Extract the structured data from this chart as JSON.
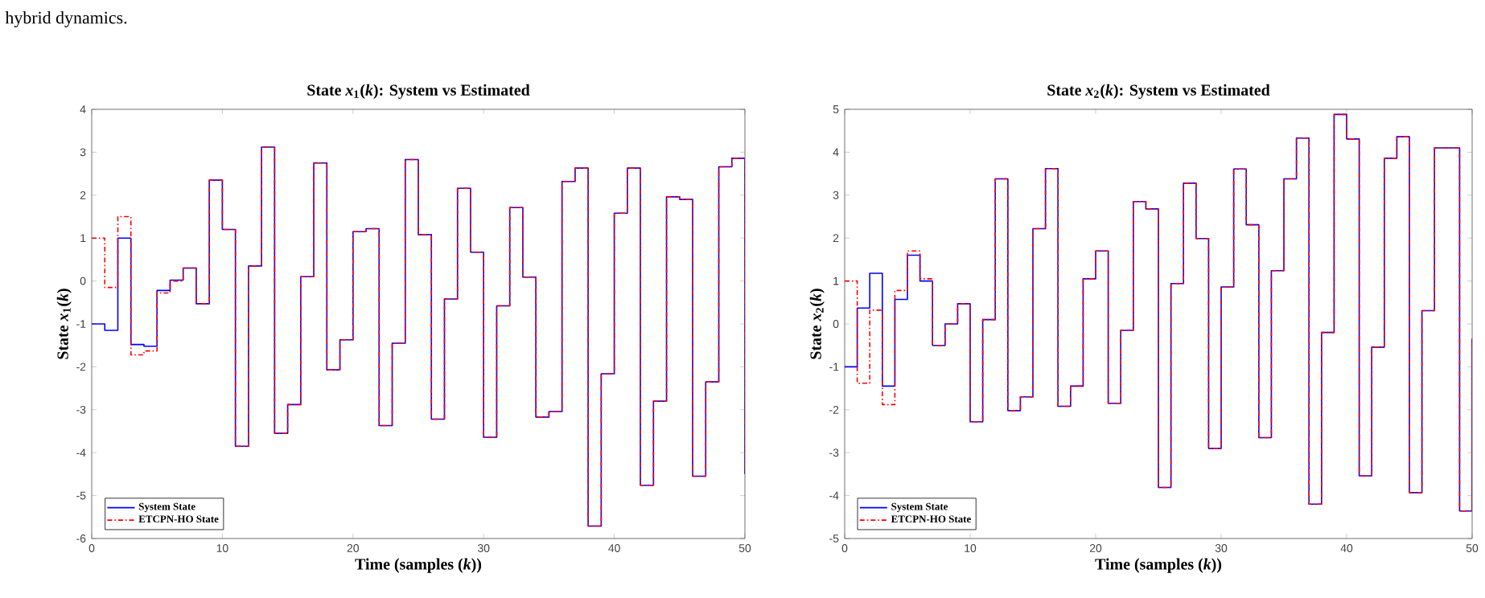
{
  "chart_data": [
    {
      "type": "step",
      "title": "State *x*$_{1}$(*k*): System vs Estimated",
      "xlabel": "Time (samples (*k*))",
      "ylabel": "State *x*$_{1}$(*k*)",
      "annotations": [
        "hybrid dynamics."
      ],
      "x": [
        0,
        1,
        2,
        3,
        4,
        5,
        6,
        7,
        8,
        9,
        10,
        11,
        12,
        13,
        14,
        15,
        16,
        17,
        18,
        19,
        20,
        21,
        22,
        23,
        24,
        25,
        26,
        27,
        28,
        29,
        30,
        31,
        32,
        33,
        34,
        35,
        36,
        37,
        38,
        39,
        40,
        41,
        42,
        43,
        44,
        45,
        46,
        47,
        48,
        49,
        50
      ],
      "series": [
        {
          "name": "System State",
          "color": "#0000ff",
          "line_style": "solid",
          "values": [
            -1,
            -1.15,
            1.0,
            -1.48,
            -1.52,
            -0.22,
            0.02,
            0.3,
            -0.53,
            2.35,
            1.2,
            -3.85,
            0.35,
            3.12,
            -3.55,
            -2.88,
            0.1,
            2.75,
            -2.07,
            -1.37,
            1.15,
            1.22,
            -3.37,
            -1.45,
            2.83,
            1.08,
            -3.22,
            -0.42,
            2.16,
            0.67,
            -3.64,
            -0.58,
            1.71,
            0.09,
            -3.17,
            -3.04,
            2.32,
            2.63,
            -5.71,
            -2.16,
            1.58,
            2.63,
            -4.76,
            -2.8,
            1.96,
            1.9,
            -4.55,
            -2.35,
            2.66,
            2.86,
            -4.5
          ]
        },
        {
          "name": "ETCPN-HO State",
          "color": "#ff0000",
          "line_style": "dashed",
          "values": [
            1.0,
            -0.15,
            1.5,
            -1.72,
            -1.63,
            -0.28,
            0.0,
            0.3,
            -0.53,
            2.35,
            1.2,
            -3.85,
            0.35,
            3.12,
            -3.55,
            -2.88,
            0.1,
            2.75,
            -2.07,
            -1.37,
            1.15,
            1.22,
            -3.37,
            -1.45,
            2.83,
            1.08,
            -3.22,
            -0.42,
            2.16,
            0.67,
            -3.64,
            -0.58,
            1.71,
            0.09,
            -3.17,
            -3.04,
            2.32,
            2.63,
            -5.71,
            -2.16,
            1.58,
            2.63,
            -4.76,
            -2.8,
            1.96,
            1.9,
            -4.55,
            -2.35,
            2.66,
            2.86,
            -4.5
          ]
        }
      ],
      "xlim": [
        0,
        50
      ],
      "xticks": [
        0,
        10,
        20,
        30,
        40,
        50
      ],
      "ylim": [
        -6,
        4
      ],
      "yticks": [
        -6,
        -5,
        -4,
        -3,
        -2,
        -1,
        0,
        1,
        2,
        3,
        4
      ],
      "legend": "bottom left",
      "grid": false
    },
    {
      "type": "step",
      "title": "State *x*$_{2}$(*k*): System vs Estimated",
      "xlabel": "Time (samples (*k*))",
      "ylabel": "State *x*$_{2}$(*k*)",
      "x": [
        0,
        1,
        2,
        3,
        4,
        5,
        6,
        7,
        8,
        9,
        10,
        11,
        12,
        13,
        14,
        15,
        16,
        17,
        18,
        19,
        20,
        21,
        22,
        23,
        24,
        25,
        26,
        27,
        28,
        29,
        30,
        31,
        32,
        33,
        34,
        35,
        36,
        37,
        38,
        39,
        40,
        41,
        42,
        43,
        44,
        45,
        46,
        47,
        48,
        49,
        50
      ],
      "series": [
        {
          "name": "System State",
          "color": "#0000ff",
          "line_style": "solid",
          "values": [
            -1,
            0.37,
            1.18,
            -1.45,
            0.57,
            1.6,
            1.0,
            -0.5,
            0.0,
            0.47,
            -2.28,
            0.1,
            3.38,
            -2.02,
            -1.7,
            2.22,
            3.62,
            -1.92,
            -1.45,
            1.05,
            1.7,
            -1.85,
            -0.15,
            2.85,
            2.68,
            -3.81,
            0.94,
            3.28,
            1.99,
            -2.9,
            0.86,
            3.61,
            2.31,
            -2.65,
            1.24,
            3.38,
            4.33,
            -4.2,
            -0.2,
            4.88,
            4.31,
            -3.54,
            -0.54,
            3.86,
            4.36,
            -3.93,
            0.31,
            4.1,
            4.1,
            -4.36,
            -0.34
          ]
        },
        {
          "name": "ETCPN-HO State",
          "color": "#ff0000",
          "line_style": "dashed",
          "values": [
            1.0,
            -1.38,
            0.32,
            -1.88,
            0.78,
            1.7,
            1.05,
            -0.5,
            0.0,
            0.47,
            -2.28,
            0.1,
            3.38,
            -2.02,
            -1.7,
            2.22,
            3.62,
            -1.92,
            -1.45,
            1.05,
            1.7,
            -1.85,
            -0.15,
            2.85,
            2.68,
            -3.81,
            0.94,
            3.28,
            1.99,
            -2.9,
            0.86,
            3.61,
            2.31,
            -2.65,
            1.24,
            3.38,
            4.33,
            -4.2,
            -0.2,
            4.88,
            4.31,
            -3.54,
            -0.54,
            3.86,
            4.36,
            -3.93,
            0.31,
            4.1,
            4.1,
            -4.36,
            -0.34
          ]
        }
      ],
      "xlim": [
        0,
        50
      ],
      "xticks": [
        0,
        10,
        20,
        30,
        40,
        50
      ],
      "ylim": [
        -5,
        5
      ],
      "yticks": [
        -5,
        -4,
        -3,
        -2,
        -1,
        0,
        1,
        2,
        3,
        4,
        5
      ],
      "legend": "bottom left",
      "grid": false
    }
  ]
}
